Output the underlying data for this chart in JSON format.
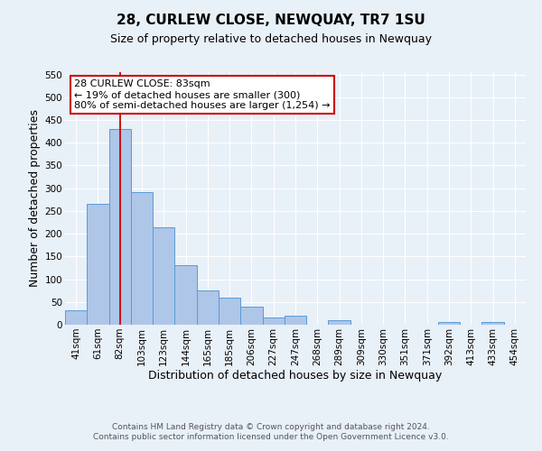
{
  "title": "28, CURLEW CLOSE, NEWQUAY, TR7 1SU",
  "subtitle": "Size of property relative to detached houses in Newquay",
  "xlabel": "Distribution of detached houses by size in Newquay",
  "ylabel": "Number of detached properties",
  "bin_labels": [
    "41sqm",
    "61sqm",
    "82sqm",
    "103sqm",
    "123sqm",
    "144sqm",
    "165sqm",
    "185sqm",
    "206sqm",
    "227sqm",
    "247sqm",
    "268sqm",
    "289sqm",
    "309sqm",
    "330sqm",
    "351sqm",
    "371sqm",
    "392sqm",
    "413sqm",
    "433sqm",
    "454sqm"
  ],
  "bar_values": [
    32,
    265,
    430,
    292,
    215,
    130,
    76,
    59,
    40,
    15,
    20,
    0,
    10,
    0,
    0,
    0,
    0,
    5,
    0,
    5,
    0
  ],
  "bar_color": "#aec6e8",
  "bar_edge_color": "#5b9bd5",
  "vline_x_index": 2,
  "vline_color": "#cc0000",
  "annotation_title": "28 CURLEW CLOSE: 83sqm",
  "annotation_line1": "← 19% of detached houses are smaller (300)",
  "annotation_line2": "80% of semi-detached houses are larger (1,254) →",
  "annotation_box_color": "#ffffff",
  "annotation_box_edge": "#cc0000",
  "ylim": [
    0,
    555
  ],
  "yticks": [
    0,
    50,
    100,
    150,
    200,
    250,
    300,
    350,
    400,
    450,
    500,
    550
  ],
  "footer1": "Contains HM Land Registry data © Crown copyright and database right 2024.",
  "footer2": "Contains public sector information licensed under the Open Government Licence v3.0.",
  "bg_color": "#e8f0f8",
  "plot_bg_color": "#e8f0f8",
  "grid_color": "#ffffff",
  "title_fontsize": 11,
  "subtitle_fontsize": 9,
  "axis_label_fontsize": 9,
  "tick_fontsize": 7.5,
  "annotation_fontsize": 8,
  "footer_fontsize": 6.5
}
